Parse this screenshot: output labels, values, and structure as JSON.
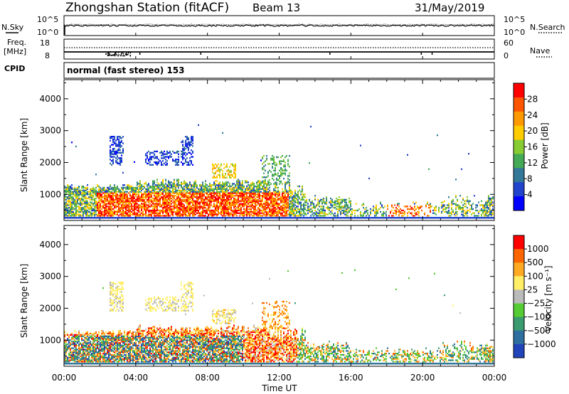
{
  "header": {
    "station": "Zhongshan Station (fitACF)",
    "beam": "Beam 13",
    "date": "31/May/2019"
  },
  "left_labels": {
    "nsky": "N.Sky",
    "freq": "Freq.",
    "mhz": "[MHz]",
    "cpid": "CPID"
  },
  "right_labels": {
    "nsearch": "N.Search",
    "nave": "Nave"
  },
  "noise_axis": {
    "left_top": "10^5",
    "left_bottom": "10^0",
    "right_top": "10^5",
    "right_bottom": "10^0"
  },
  "freq_axis": {
    "left_top": "18",
    "left_bottom": "8",
    "right_top": "60",
    "right_bottom": "0"
  },
  "cpid_text": "normal (fast stereo) 153",
  "colors": {
    "power": [
      "#0000ff",
      "#2244cc",
      "#337799",
      "#44aa55",
      "#88cc33",
      "#ffcc00",
      "#ff9900",
      "#ff5500",
      "#ff0000"
    ],
    "velocity": [
      "#2244bb",
      "#2e6fa0",
      "#3a9a70",
      "#55cc33",
      "#bbbbbb",
      "#ffee66",
      "#ffaa22",
      "#ff6600",
      "#ff0000"
    ]
  },
  "chart_data": [
    {
      "type": "heatmap",
      "name": "power-panel",
      "ylabel": "Slant Range [km]",
      "x_ticks": [
        "00:00",
        "04:00",
        "08:00",
        "12:00",
        "16:00",
        "20:00",
        "00:00"
      ],
      "y_ticks": [
        1000,
        2000,
        3000,
        4000
      ],
      "xlim_hours": [
        0,
        24
      ],
      "ylim_km": [
        180,
        4600
      ],
      "colorbar": {
        "label": "Power [dB]",
        "ticks": [
          "4",
          "8",
          "12",
          "16",
          "20",
          "24",
          "28"
        ]
      }
    },
    {
      "type": "heatmap",
      "name": "velocity-panel",
      "ylabel": "Slant Range [km]",
      "xlabel": "Time UT",
      "x_ticks": [
        "00:00",
        "04:00",
        "08:00",
        "12:00",
        "16:00",
        "20:00",
        "00:00"
      ],
      "y_ticks": [
        1000,
        2000,
        3000,
        4000
      ],
      "xlim_hours": [
        0,
        24
      ],
      "ylim_km": [
        180,
        4600
      ],
      "colorbar": {
        "label": "Velocity [m s⁻¹]",
        "ticks": [
          "1000",
          "500",
          "100",
          "25",
          "−25",
          "−100",
          "−500",
          "−1000"
        ]
      }
    }
  ]
}
